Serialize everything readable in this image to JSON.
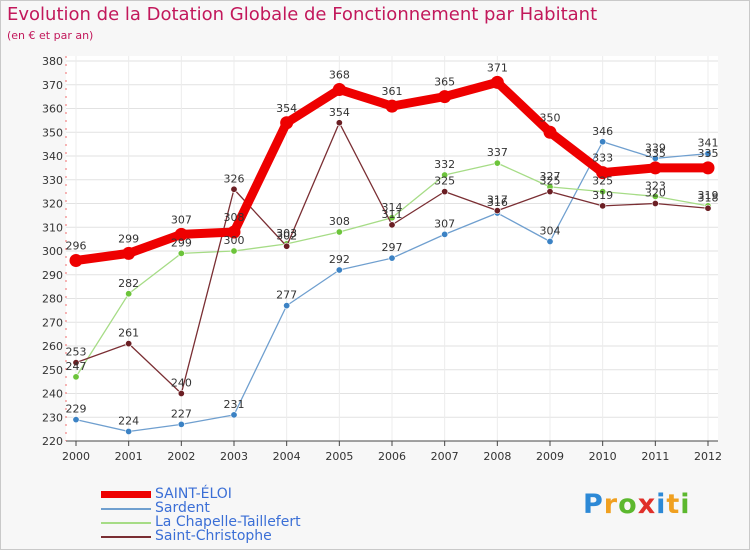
{
  "title": "Evolution de la Dotation Globale de Fonctionnement par Habitant",
  "subtitle": "(en € et par an)",
  "logo": {
    "text": "Proxiti",
    "letters": [
      {
        "ch": "P",
        "color": "#2d89d6"
      },
      {
        "ch": "r",
        "color": "#f0a020"
      },
      {
        "ch": "o",
        "color": "#5cb82e"
      },
      {
        "ch": "x",
        "color": "#e0302a"
      },
      {
        "ch": "i",
        "color": "#2d89d6"
      },
      {
        "ch": "t",
        "color": "#f0a020"
      },
      {
        "ch": "i",
        "color": "#5cb82e"
      }
    ]
  },
  "chart_data": {
    "type": "line",
    "title": "Evolution de la Dotation Globale de Fonctionnement par Habitant",
    "subtitle": "(en € et par an)",
    "xlabel": "",
    "ylabel": "",
    "ylim": [
      220,
      380
    ],
    "yticks": [
      220,
      230,
      240,
      250,
      260,
      270,
      280,
      290,
      300,
      310,
      320,
      330,
      340,
      350,
      360,
      370,
      380
    ],
    "categories": [
      "2000",
      "2001",
      "2002",
      "2003",
      "2004",
      "2005",
      "2006",
      "2007",
      "2008",
      "2009",
      "2010",
      "2011",
      "2012"
    ],
    "grid": true,
    "legend_position": "bottom-left",
    "series": [
      {
        "name": "SAINT-ÉLOI",
        "color": "#ee0000",
        "emphasis": true,
        "values": [
          296,
          299,
          307,
          308,
          354,
          368,
          361,
          365,
          371,
          350,
          333,
          335,
          335
        ],
        "labels": [
          "296",
          "299",
          "307",
          "308",
          "354",
          "368",
          "361",
          "365",
          "371",
          "350",
          "333",
          "335",
          "335"
        ]
      },
      {
        "name": "Sardent",
        "color": "#6f9fcf",
        "point_color": "#3b82c4",
        "values": [
          229,
          224,
          227,
          231,
          277,
          292,
          297,
          307,
          316,
          304,
          346,
          339,
          341
        ],
        "labels": [
          "229",
          "224",
          "227",
          "231",
          "277",
          "292",
          "297",
          "307",
          "316",
          "304",
          "346",
          "339",
          "341"
        ]
      },
      {
        "name": "La Chapelle-Taillefert",
        "color": "#a6dc86",
        "point_color": "#6cc43a",
        "values": [
          247,
          282,
          299,
          300,
          303,
          308,
          314,
          332,
          337,
          327,
          325,
          323,
          319
        ],
        "labels": [
          "247",
          "282",
          "299",
          "300",
          "303",
          "308",
          "314",
          "332",
          "337",
          "327",
          "325",
          "323",
          "319"
        ]
      },
      {
        "name": "Saint-Christophe",
        "color": "#7a2e33",
        "point_color": "#6b1f24",
        "values": [
          253,
          261,
          240,
          326,
          302,
          354,
          311,
          325,
          317,
          325,
          319,
          320,
          318
        ],
        "labels": [
          "253",
          "261",
          "240",
          "326",
          "302",
          "354",
          "311",
          "325",
          "317",
          "325",
          "319",
          "320",
          "318"
        ]
      }
    ]
  }
}
